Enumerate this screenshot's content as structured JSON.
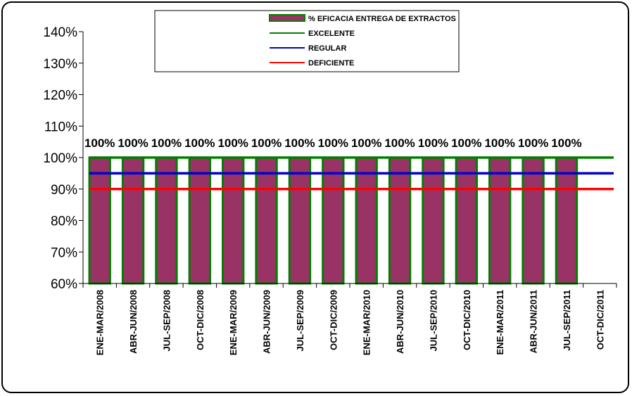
{
  "chart_data": {
    "type": "bar",
    "categories": [
      "ENE-MAR/2008",
      "ABR-JUN/2008",
      "JUL-SEP/2008",
      "OCT-DIC/2008",
      "ENE-MAR/2009",
      "ABR-JUN/2009",
      "JUL-SEP/2009",
      "OCT-DIC/2009",
      "ENE-MAR/2010",
      "ABR-JUN/2010",
      "JUL-SEP/2010",
      "OCT-DIC/2010",
      "ENE-MAR/2011",
      "ABR-JUN/2011",
      "JUL-SEP/2011",
      "OCT-DIC/2011"
    ],
    "series": [
      {
        "name": "% EFICACIA ENTREGA DE EXTRACTOS",
        "type": "bar",
        "color": "#993366",
        "edge_color": "#008000",
        "values": [
          100,
          100,
          100,
          100,
          100,
          100,
          100,
          100,
          100,
          100,
          100,
          100,
          100,
          100,
          100,
          null
        ],
        "labels": [
          "100%",
          "100%",
          "100%",
          "100%",
          "100%",
          "100%",
          "100%",
          "100%",
          "100%",
          "100%",
          "100%",
          "100%",
          "100%",
          "100%",
          "100%",
          ""
        ]
      },
      {
        "name": "EXCELENTE",
        "type": "line",
        "color": "#008000",
        "value": 100
      },
      {
        "name": "REGULAR",
        "type": "line",
        "color": "#0000CC",
        "value": 95
      },
      {
        "name": "DEFICIENTE",
        "type": "line",
        "color": "#FF0000",
        "value": 90
      }
    ],
    "ylim": [
      60,
      140
    ],
    "yticks": [
      "60%",
      "70%",
      "80%",
      "90%",
      "100%",
      "110%",
      "120%",
      "130%",
      "140%"
    ],
    "ytick_values": [
      60,
      70,
      80,
      90,
      100,
      110,
      120,
      130,
      140
    ],
    "legend_position": "top",
    "grid": false
  }
}
